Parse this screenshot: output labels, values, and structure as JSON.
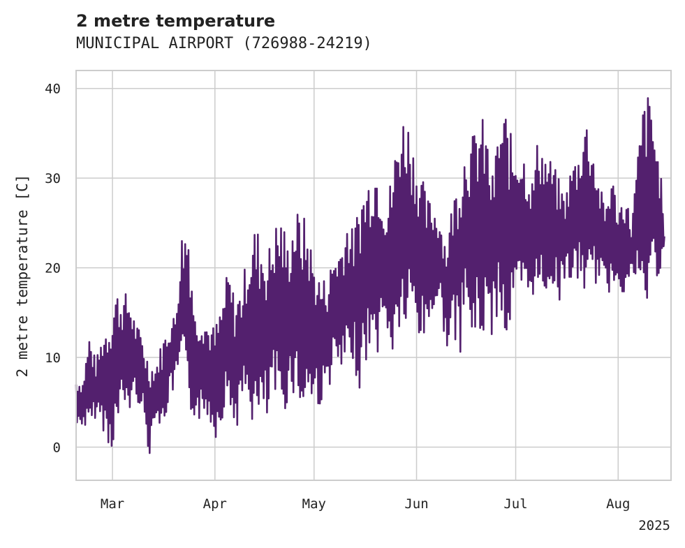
{
  "title": "2 metre temperature",
  "subtitle": "MUNICIPAL AIRPORT (726988-24219)",
  "chart_data": {
    "type": "line",
    "title": "2 metre temperature",
    "subtitle": "MUNICIPAL AIRPORT (726988-24219)",
    "xlabel": "",
    "ylabel": "2 metre temperature [C]",
    "xlim": [
      "2025-02-18",
      "2025-08-17"
    ],
    "ylim": [
      -3.7,
      42
    ],
    "yticks": [
      0,
      10,
      20,
      30,
      40
    ],
    "xticks": [
      {
        "date": "2025-03-01",
        "label": "Mar"
      },
      {
        "date": "2025-04-01",
        "label": "Apr"
      },
      {
        "date": "2025-05-01",
        "label": "May"
      },
      {
        "date": "2025-06-01",
        "label": "Jun"
      },
      {
        "date": "2025-07-01",
        "label": "Jul"
      },
      {
        "date": "2025-08-01",
        "label": "Aug"
      }
    ],
    "year_label": "2025",
    "grid": true,
    "line_color": "#53206e",
    "series": [
      {
        "x": [
          "2025-02-18",
          "2025-02-20",
          "2025-02-22",
          "2025-02-24",
          "2025-02-26",
          "2025-02-28",
          "2025-03-02",
          "2025-03-04",
          "2025-03-06",
          "2025-03-08",
          "2025-03-10",
          "2025-03-12",
          "2025-03-14",
          "2025-03-16",
          "2025-03-18",
          "2025-03-20",
          "2025-03-22",
          "2025-03-24",
          "2025-03-26",
          "2025-03-28",
          "2025-03-30",
          "2025-04-01",
          "2025-04-03",
          "2025-04-05",
          "2025-04-07",
          "2025-04-09",
          "2025-04-11",
          "2025-04-13",
          "2025-04-15",
          "2025-04-17",
          "2025-04-19",
          "2025-04-21",
          "2025-04-23",
          "2025-04-25",
          "2025-04-27",
          "2025-04-29",
          "2025-05-01",
          "2025-05-03",
          "2025-05-05",
          "2025-05-07",
          "2025-05-09",
          "2025-05-11",
          "2025-05-13",
          "2025-05-15",
          "2025-05-17",
          "2025-05-19",
          "2025-05-21",
          "2025-05-23",
          "2025-05-25",
          "2025-05-27",
          "2025-05-29",
          "2025-05-31",
          "2025-06-02",
          "2025-06-04",
          "2025-06-06",
          "2025-06-08",
          "2025-06-10",
          "2025-06-12",
          "2025-06-14",
          "2025-06-16",
          "2025-06-18",
          "2025-06-20",
          "2025-06-22",
          "2025-06-24",
          "2025-06-26",
          "2025-06-28",
          "2025-06-30",
          "2025-07-02",
          "2025-07-04",
          "2025-07-06",
          "2025-07-08",
          "2025-07-10",
          "2025-07-12",
          "2025-07-14",
          "2025-07-16",
          "2025-07-18",
          "2025-07-20",
          "2025-07-22",
          "2025-07-24",
          "2025-07-26",
          "2025-07-28",
          "2025-07-30",
          "2025-08-01",
          "2025-08-03",
          "2025-08-05",
          "2025-08-07",
          "2025-08-09",
          "2025-08-11",
          "2025-08-13",
          "2025-08-15"
        ],
        "low": [
          1.8,
          2.5,
          1.0,
          3.5,
          2.2,
          -1.0,
          1.0,
          4.0,
          3.5,
          5.5,
          4.0,
          -1.5,
          4.0,
          1.0,
          5.0,
          6.5,
          9.0,
          2.3,
          3.5,
          2.3,
          3.5,
          0.7,
          3.0,
          5.0,
          1.5,
          4.0,
          5.0,
          1.0,
          2.0,
          2.2,
          5.0,
          2.3,
          5.0,
          6.0,
          3.0,
          4.5,
          4.5,
          4.5,
          6.0,
          8.5,
          7.5,
          8.0,
          9.5,
          5.5,
          10.0,
          9.0,
          11.0,
          13.0,
          8.5,
          13.0,
          12.0,
          14.0,
          11.0,
          12.0,
          15.0,
          16.0,
          11.0,
          12.0,
          10.0,
          15.0,
          10.5,
          11.0,
          13.0,
          12.0,
          16.0,
          10.5,
          14.0,
          16.0,
          15.0,
          17.0,
          16.0,
          17.0,
          18.0,
          16.0,
          19.0,
          18.0,
          18.0,
          17.0,
          16.5,
          19.0,
          17.0,
          17.0,
          19.0,
          16.0,
          19.0,
          18.0,
          13.0,
          18.0,
          19.0,
          20.0
        ],
        "high": [
          8.0,
          7.5,
          13.0,
          9.5,
          13.0,
          15.0,
          18.0,
          17.0,
          17.5,
          14.0,
          12.5,
          10.0,
          9.0,
          12.0,
          14.0,
          15.0,
          24.0,
          26.0,
          15.0,
          16.0,
          14.0,
          13.5,
          16.0,
          20.0,
          17.0,
          18.0,
          22.0,
          25.0,
          24.0,
          22.0,
          25.0,
          26.5,
          23.0,
          26.5,
          26.5,
          25.0,
          21.0,
          19.0,
          19.0,
          22.0,
          23.0,
          26.0,
          24.0,
          29.0,
          30.0,
          33.0,
          31.5,
          27.0,
          32.5,
          37.0,
          38.0,
          34.0,
          31.5,
          28.0,
          27.5,
          26.0,
          23.0,
          28.0,
          31.5,
          34.5,
          35.0,
          37.5,
          36.0,
          30.5,
          36.5,
          38.0,
          34.0,
          34.5,
          33.0,
          30.0,
          35.5,
          33.0,
          32.0,
          30.0,
          28.0,
          32.0,
          33.0,
          37.5,
          35.0,
          30.0,
          27.0,
          31.0,
          26.5,
          29.0,
          25.0,
          33.0,
          40.0,
          39.0,
          33.0,
          27.0
        ]
      }
    ]
  }
}
